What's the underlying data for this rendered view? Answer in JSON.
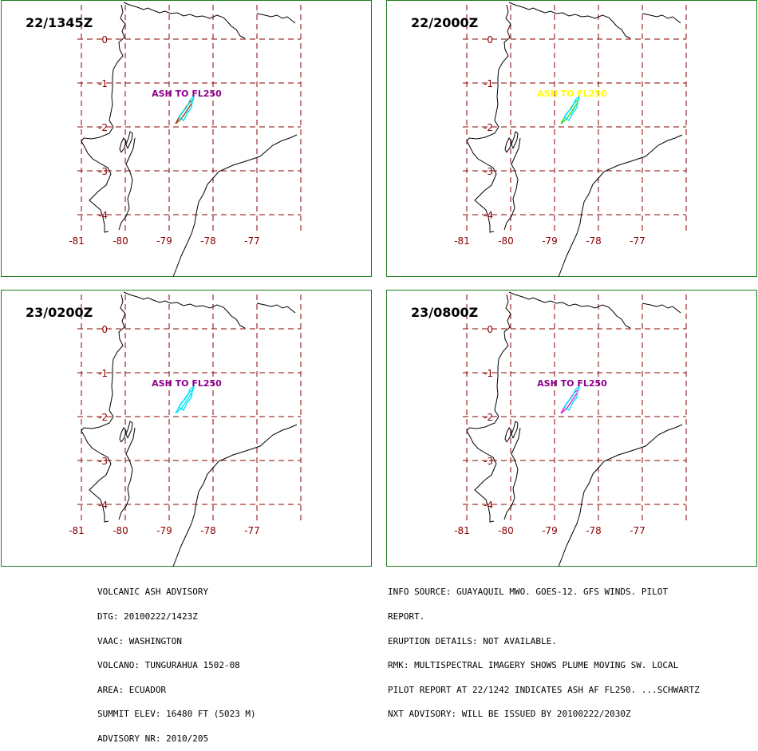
{
  "colors": {
    "frame": "#1e7d1e",
    "grid": "#8b0000",
    "coastline": "#000000",
    "label_purple": "#8b008b",
    "label_yellow": "#ffff00"
  },
  "panels": [
    {
      "time": "22/1345Z",
      "label": "ASH TO FL250",
      "label_color": "#8b008b",
      "cloud_colors": [
        "#00e5ff",
        "#8b4513"
      ]
    },
    {
      "time": "22/2000Z",
      "label": "ASH TO FL250",
      "label_color": "#ffff00",
      "cloud_colors": [
        "#00e5ff",
        "#22dd22"
      ]
    },
    {
      "time": "23/0200Z",
      "label": "ASH TO FL250",
      "label_color": "#8b008b",
      "cloud_colors": [
        "#00e5ff",
        "#00e5ff"
      ]
    },
    {
      "time": "23/0800Z",
      "label": "ASH TO FL250",
      "label_color": "#8b008b",
      "cloud_colors": [
        "#00e5ff",
        "#dd22dd"
      ]
    }
  ],
  "map": {
    "lat_labels": [
      "0",
      "-1",
      "-2",
      "-3",
      "-4"
    ],
    "lon_labels": [
      "-81",
      "-80",
      "-79",
      "-78",
      "-77"
    ]
  },
  "advisory_left": [
    "VOLCANIC ASH ADVISORY",
    "DTG: 20100222/1423Z",
    "VAAC: WASHINGTON",
    "VOLCANO: TUNGURAHUA 1502-08",
    "AREA: ECUADOR",
    "SUMMIT ELEV: 16480 FT (5023 M)",
    "ADVISORY NR: 2010/205"
  ],
  "advisory_right": [
    "INFO SOURCE: GUAYAQUIL MWO. GOES-12. GFS WINDS. PILOT",
    "REPORT.",
    "ERUPTION DETAILS: NOT AVAILABLE.",
    "RMK: MULTISPECTRAL IMAGERY SHOWS PLUME MOVING SW. LOCAL",
    "PILOT REPORT AT 22/1242 INDICATES ASH AF FL250. ...SCHWARTZ",
    "NXT ADVISORY: WILL BE ISSUED BY 20100222/2030Z"
  ]
}
